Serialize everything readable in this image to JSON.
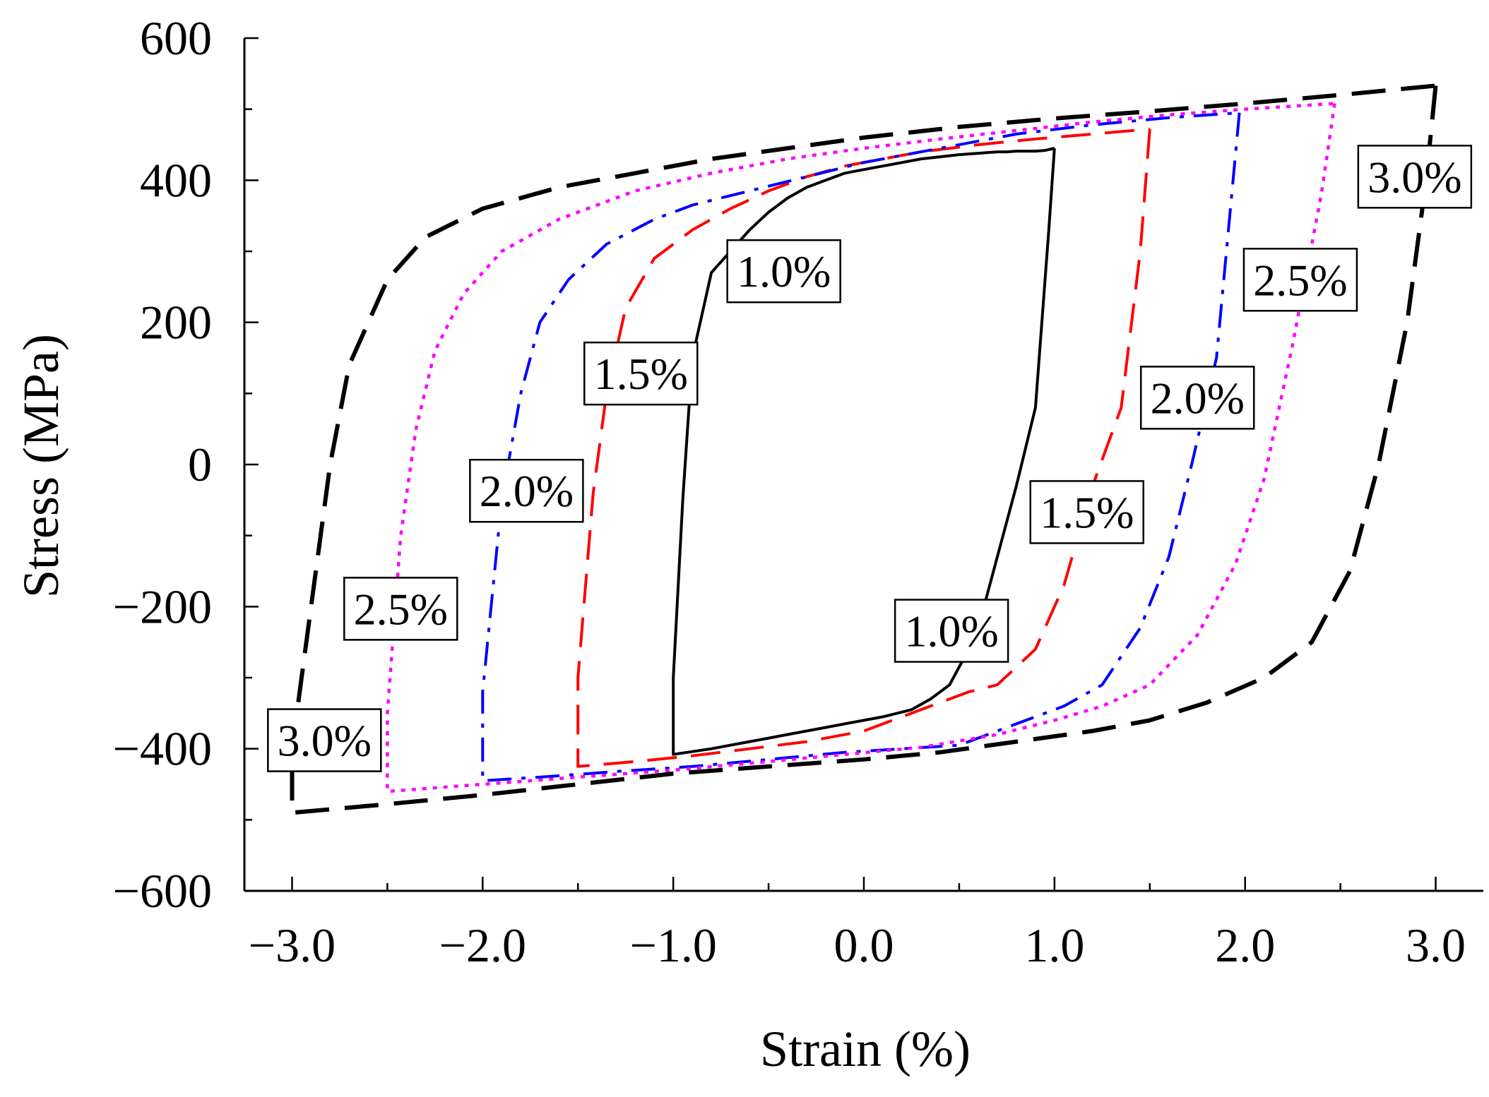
{
  "chart_data": {
    "type": "line",
    "title": "",
    "xlabel": "Strain (%)",
    "ylabel": "Stress (MPa)",
    "xlim": [
      -3.25,
      3.25
    ],
    "ylim": [
      -600,
      600
    ],
    "x_ticks": [
      -3,
      -2,
      -1,
      0,
      1,
      2,
      3
    ],
    "x_tick_labels": [
      "−3.0",
      "−2.0",
      "−1.0",
      "0.0",
      "1.0",
      "2.0",
      "3.0"
    ],
    "y_ticks": [
      600,
      400,
      200,
      0,
      -200,
      -400,
      -600
    ],
    "y_tick_labels": [
      "600",
      "400",
      "200",
      "0",
      "−200",
      "−400",
      "−600"
    ],
    "grid": false,
    "series": [
      {
        "name": "1.0%",
        "color": "#000000",
        "style": "solid",
        "x": [
          1.0,
          0.97,
          0.9,
          0.8,
          0.7,
          0.6,
          0.55,
          0.45,
          0.35,
          0.25,
          0.1,
          0.0,
          -0.1,
          -0.2,
          -0.3,
          -0.4,
          -0.5,
          -0.6,
          -0.7,
          -0.8,
          -0.85,
          -0.9,
          -0.95,
          -1.0,
          -1.0,
          -0.95,
          -0.9,
          -0.8,
          -0.7,
          -0.6,
          -0.5,
          -0.4,
          -0.3,
          -0.2,
          -0.1,
          0.0,
          0.1,
          0.2,
          0.3,
          0.4,
          0.5,
          0.55,
          0.6,
          0.65,
          0.7,
          0.75,
          0.8,
          0.85,
          0.9,
          0.95,
          1.0
        ],
        "y": [
          445,
          330,
          80,
          -30,
          -130,
          -230,
          -260,
          -310,
          -330,
          -345,
          -355,
          -360,
          -365,
          -370,
          -375,
          -380,
          -385,
          -390,
          -395,
          -400,
          -402,
          -404,
          -406,
          -408,
          -300,
          -50,
          150,
          270,
          300,
          330,
          355,
          375,
          390,
          400,
          410,
          415,
          420,
          425,
          430,
          433,
          436,
          437,
          438,
          439,
          440,
          440,
          441,
          441,
          441,
          442,
          445
        ]
      },
      {
        "name": "1.5%",
        "color": "#ff0000",
        "style": "dashed",
        "x": [
          1.5,
          1.45,
          1.35,
          1.2,
          1.05,
          0.9,
          0.7,
          0.55,
          0.3,
          0.0,
          -0.3,
          -0.6,
          -0.9,
          -1.2,
          -1.5,
          -1.5,
          -1.42,
          -1.35,
          -1.25,
          -1.1,
          -0.9,
          -0.7,
          -0.5,
          -0.3,
          -0.1,
          0.1,
          0.3,
          0.6,
          0.9,
          1.2,
          1.5
        ],
        "y": [
          472,
          300,
          80,
          -30,
          -170,
          -260,
          -310,
          -320,
          -345,
          -375,
          -390,
          -400,
          -410,
          -418,
          -425,
          -300,
          -40,
          100,
          220,
          290,
          330,
          360,
          385,
          405,
          420,
          430,
          440,
          450,
          458,
          465,
          472
        ]
      },
      {
        "name": "2.0%",
        "color": "#0000ff",
        "style": "dashdot",
        "x": [
          1.97,
          1.93,
          1.85,
          1.72,
          1.6,
          1.45,
          1.25,
          1.05,
          0.8,
          0.5,
          0.2,
          -0.1,
          -0.5,
          -0.9,
          -1.3,
          -1.7,
          -2.0,
          -2.0,
          -1.9,
          -1.8,
          -1.7,
          -1.55,
          -1.35,
          -1.1,
          -0.9,
          -0.6,
          -0.3,
          0.0,
          0.4,
          0.8,
          1.2,
          1.6,
          1.97
        ],
        "y": [
          495,
          380,
          150,
          0,
          -130,
          -230,
          -310,
          -340,
          -365,
          -395,
          -400,
          -405,
          -415,
          -425,
          -432,
          -440,
          -445,
          -320,
          -50,
          100,
          200,
          260,
          310,
          345,
          365,
          385,
          405,
          425,
          445,
          465,
          478,
          488,
          495
        ]
      },
      {
        "name": "2.5%",
        "color": "#ff00ff",
        "style": "dotted",
        "x": [
          2.47,
          2.4,
          2.25,
          2.1,
          1.95,
          1.75,
          1.5,
          1.25,
          1.0,
          0.7,
          0.3,
          -0.1,
          -0.5,
          -1.0,
          -1.5,
          -2.0,
          -2.5,
          -2.5,
          -2.43,
          -2.35,
          -2.25,
          -2.1,
          -1.9,
          -1.6,
          -1.2,
          -0.8,
          -0.4,
          0.0,
          0.4,
          0.8,
          1.2,
          1.6,
          2.0,
          2.47
        ],
        "y": [
          508,
          380,
          170,
          -20,
          -140,
          -240,
          -310,
          -340,
          -360,
          -380,
          -398,
          -408,
          -418,
          -430,
          -440,
          -450,
          -460,
          -350,
          -100,
          50,
          160,
          240,
          300,
          345,
          385,
          410,
          430,
          445,
          458,
          470,
          482,
          492,
          500,
          508
        ]
      },
      {
        "name": "3.0%",
        "color": "#000000",
        "style": "dashed",
        "x": [
          3.0,
          2.95,
          2.85,
          2.7,
          2.55,
          2.35,
          2.1,
          1.8,
          1.5,
          1.2,
          0.8,
          0.4,
          0.0,
          -0.5,
          -1.0,
          -1.5,
          -2.0,
          -2.5,
          -3.0,
          -3.0,
          -2.9,
          -2.8,
          -2.7,
          -2.5,
          -2.3,
          -2.0,
          -1.6,
          -1.2,
          -0.8,
          -0.4,
          0.0,
          0.5,
          1.0,
          1.5,
          2.0,
          2.5,
          3.0
        ],
        "y": [
          533,
          400,
          200,
          0,
          -150,
          -250,
          -300,
          -335,
          -360,
          -375,
          -390,
          -405,
          -415,
          -425,
          -435,
          -450,
          -465,
          -478,
          -490,
          -400,
          -200,
          0,
          140,
          260,
          320,
          360,
          390,
          410,
          430,
          445,
          460,
          475,
          487,
          497,
          508,
          520,
          533
        ]
      }
    ],
    "annotations": [
      {
        "text": "1.0%",
        "x": -0.42,
        "y": 272
      },
      {
        "text": "1.5%",
        "x": -1.17,
        "y": 128
      },
      {
        "text": "2.0%",
        "x": -1.77,
        "y": -37
      },
      {
        "text": "2.5%",
        "x": -2.43,
        "y": -203
      },
      {
        "text": "3.0%",
        "x": -2.83,
        "y": -388
      },
      {
        "text": "1.0%",
        "x": 0.46,
        "y": -234
      },
      {
        "text": "1.5%",
        "x": 1.17,
        "y": -67
      },
      {
        "text": "2.0%",
        "x": 1.75,
        "y": 94
      },
      {
        "text": "2.5%",
        "x": 2.29,
        "y": 260
      },
      {
        "text": "3.0%",
        "x": 2.89,
        "y": 405
      }
    ]
  }
}
